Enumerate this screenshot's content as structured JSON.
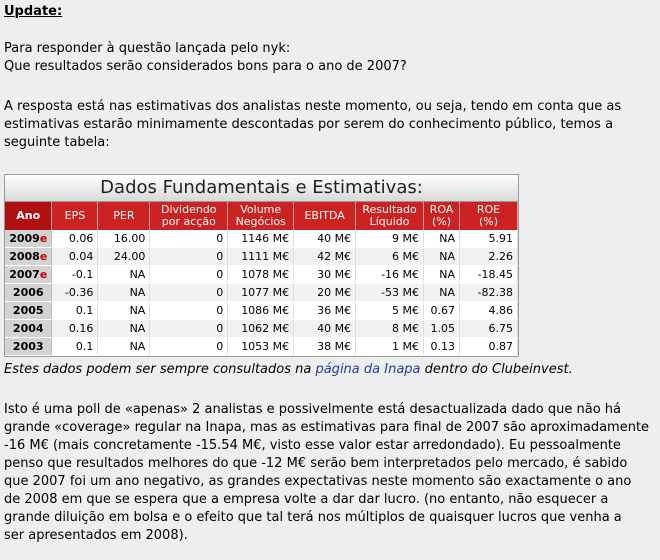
{
  "title": "Update:",
  "question": {
    "line1": "Para responder à questão lançada pelo nyk:",
    "line2": "Que resultados serão considerados bons para o ano de 2007?"
  },
  "intro": {
    "line1": "A resposta está nas estimativas dos analistas neste momento, ou seja, tendo em conta que as",
    "line2": "estimativas estarão minimamente descontadas por serem do conhecimento público, temos a",
    "line3": "seguinte tabela:"
  },
  "table": {
    "title": "Dados Fundamentais e Estimativas:",
    "headers": {
      "ano": "Ano",
      "eps": "EPS",
      "per": "PER",
      "div1": "Dividendo",
      "div2": "por acção",
      "vol1": "Volume",
      "vol2": "Negócios",
      "ebitda": "EBITDA",
      "res1": "Resultado",
      "res2": "Líquido",
      "roa1": "ROA",
      "roa2": "(%)",
      "roe1": "ROE",
      "roe2": "(%)"
    },
    "rows": [
      {
        "year": "2009",
        "est": "e",
        "eps": "0.06",
        "per": "16.00",
        "div": "0",
        "vol": "1146 M€",
        "ebitda": "40 M€",
        "res": "9 M€",
        "roa": "NA",
        "roe": "5.91"
      },
      {
        "year": "2008",
        "est": "e",
        "eps": "0.04",
        "per": "24.00",
        "div": "0",
        "vol": "1111 M€",
        "ebitda": "42 M€",
        "res": "6 M€",
        "roa": "NA",
        "roe": "2.26"
      },
      {
        "year": "2007",
        "est": "e",
        "eps": "-0.1",
        "per": "NA",
        "div": "0",
        "vol": "1078 M€",
        "ebitda": "30 M€",
        "res": "-16 M€",
        "roa": "NA",
        "roe": "-18.45"
      },
      {
        "year": "2006",
        "est": "",
        "eps": "-0.36",
        "per": "NA",
        "div": "0",
        "vol": "1077 M€",
        "ebitda": "20 M€",
        "res": "-53 M€",
        "roa": "NA",
        "roe": "-82.38"
      },
      {
        "year": "2005",
        "est": "",
        "eps": "0.1",
        "per": "NA",
        "div": "0",
        "vol": "1086 M€",
        "ebitda": "36 M€",
        "res": "5 M€",
        "roa": "0.67",
        "roe": "4.86"
      },
      {
        "year": "2004",
        "est": "",
        "eps": "0.16",
        "per": "NA",
        "div": "0",
        "vol": "1062 M€",
        "ebitda": "40 M€",
        "res": "8 M€",
        "roa": "1.05",
        "roe": "6.75"
      },
      {
        "year": "2003",
        "est": "",
        "eps": "0.1",
        "per": "NA",
        "div": "0",
        "vol": "1053 M€",
        "ebitda": "38 M€",
        "res": "1 M€",
        "roa": "0.13",
        "roe": "0.87"
      }
    ]
  },
  "note": {
    "before": "Estes dados podem ser sempre consultados na ",
    "link": "página da Inapa",
    "after": " dentro do Clubeinvest."
  },
  "final": {
    "line1": "Isto é uma poll de «apenas» 2 analistas e possivelmente está desactualizada dado que não há",
    "line2": "grande «coverage» regular na Inapa, mas as estimativas para final de 2007 são aproximadamente",
    "line3": "-16 M€ (mais concretamente -15.54 M€, visto esse valor estar arredondado). Eu pessoalmente",
    "line4": "penso que resultados melhores do que -12 M€ serão bem interpretados pelo mercado, é sabido",
    "line5": "que 2007 foi um ano negativo, as grandes expectativas neste momento são exactamente o ano",
    "line6": "de 2008 em que se espera que a empresa volte a dar dar lucro. (no entanto, não esquecer a",
    "line7": "grande diluição em bolsa e o efeito que tal terá nos múltiplos de quaisquer lucros que venha a",
    "line8": "ser apresentados em 2008)."
  }
}
